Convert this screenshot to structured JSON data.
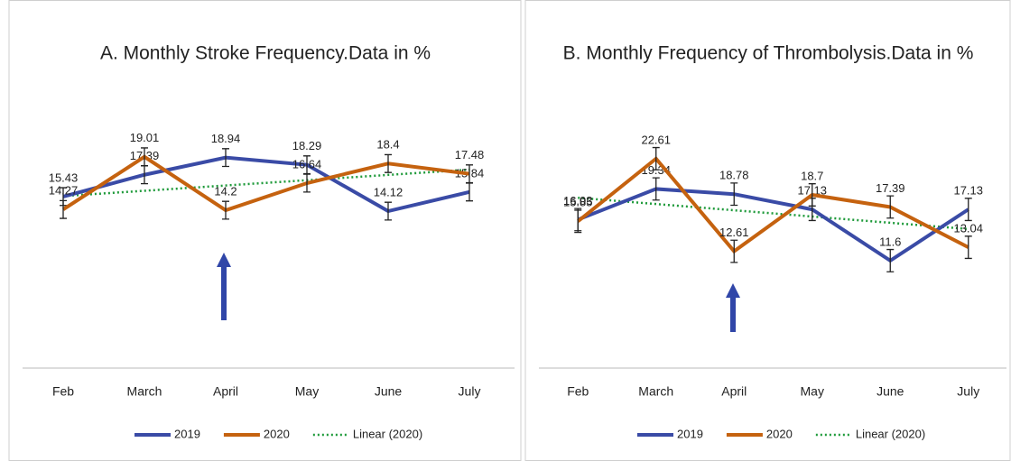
{
  "chart_data": [
    {
      "type": "line",
      "title": "A. Monthly Stroke Frequency.Data in %",
      "categories": [
        "Feb",
        "March",
        "April",
        "May",
        "June",
        "July"
      ],
      "series": [
        {
          "name": "2019",
          "color": "#3a4ba6",
          "values": [
            15.43,
            17.39,
            18.94,
            18.29,
            14.12,
            15.84
          ],
          "errors": [
            0.8,
            0.8,
            0.8,
            0.8,
            0.8,
            0.8
          ]
        },
        {
          "name": "2020",
          "color": "#c5620f",
          "values": [
            14.27,
            19.01,
            14.2,
            16.64,
            18.4,
            17.48
          ],
          "errors": [
            0.8,
            0.8,
            0.8,
            0.8,
            0.8,
            0.8
          ]
        }
      ],
      "trendline": {
        "name": "Linear (2020)",
        "color": "#1e9a3a"
      },
      "ylim": [
        0,
        25
      ]
    },
    {
      "type": "line",
      "title": "B. Monthly Frequency of Thrombolysis.Data in %",
      "categories": [
        "Feb",
        "March",
        "April",
        "May",
        "June",
        "July"
      ],
      "series": [
        {
          "name": "2019",
          "color": "#3a4ba6",
          "values": [
            16.03,
            19.34,
            18.78,
            17.13,
            11.6,
            17.13
          ],
          "errors": [
            1.2,
            1.2,
            1.2,
            1.2,
            1.2,
            1.2
          ]
        },
        {
          "name": "2020",
          "color": "#c5620f",
          "values": [
            15.85,
            22.61,
            12.61,
            18.7,
            17.39,
            13.04
          ],
          "errors": [
            1.2,
            1.2,
            1.2,
            1.2,
            1.2,
            1.2
          ]
        }
      ],
      "trendline": {
        "name": "Linear (2020)",
        "color": "#1e9a3a"
      },
      "ylim": [
        0,
        30
      ]
    }
  ]
}
